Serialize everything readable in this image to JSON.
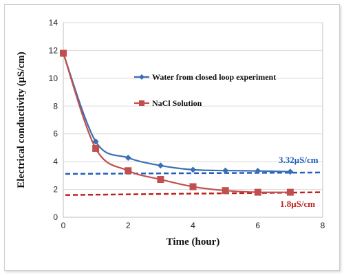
{
  "chart_data": {
    "type": "line",
    "xlabel": "Time (hour)",
    "ylabel": "Electrical conductivity (μS/cm)",
    "xlim": [
      0,
      8
    ],
    "ylim": [
      0,
      14
    ],
    "x_ticks": [
      "0",
      "2",
      "4",
      "6",
      "8"
    ],
    "y_ticks": [
      "0",
      "2",
      "4",
      "6",
      "8",
      "10",
      "12",
      "14"
    ],
    "grid": "horizontal",
    "legend_position": "inside-upper-right",
    "series": [
      {
        "name": "Water from closed loop experiment",
        "color": "#3a6fb5",
        "marker": "diamond",
        "points": [
          [
            0,
            11.8
          ],
          [
            1,
            5.45
          ],
          [
            2,
            4.28
          ],
          [
            3,
            3.72
          ],
          [
            4,
            3.42
          ],
          [
            5,
            3.36
          ],
          [
            6,
            3.33
          ],
          [
            7,
            3.28
          ]
        ]
      },
      {
        "name": "NaCl Solution",
        "color": "#c0504d",
        "marker": "square",
        "points": [
          [
            0,
            11.8
          ],
          [
            1,
            4.95
          ],
          [
            2,
            3.35
          ],
          [
            3,
            2.72
          ],
          [
            4,
            2.2
          ],
          [
            5,
            1.92
          ],
          [
            6,
            1.8
          ],
          [
            7,
            1.8
          ]
        ]
      }
    ],
    "reference_lines": [
      {
        "label": "3.32μS/cm",
        "color": "#1f5fbf",
        "from": [
          0,
          3.12
        ],
        "to": [
          8,
          3.22
        ]
      },
      {
        "label": "1.8μS/cm",
        "color": "#c0201d",
        "from": [
          0,
          1.6
        ],
        "to": [
          8,
          1.8
        ]
      }
    ]
  }
}
